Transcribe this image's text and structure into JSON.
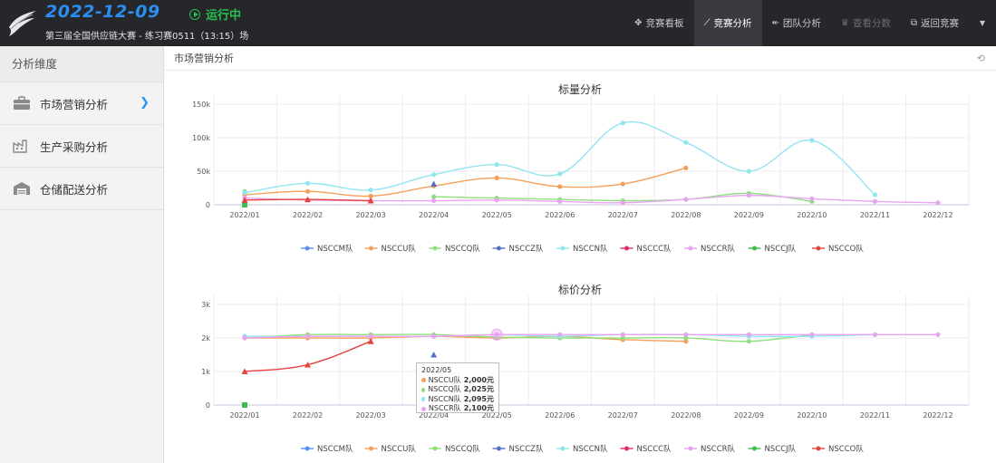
{
  "header": {
    "date": "2022-12-09",
    "status": "运行中",
    "subtitle": "第三届全国供应链大赛 - 练习赛0511（13:15）场"
  },
  "nav": [
    {
      "label": "竞赛看板",
      "icon": "dashboard-icon",
      "glyph": "✥",
      "state": "normal"
    },
    {
      "label": "竞赛分析",
      "icon": "chart-line-icon",
      "glyph": "⟋",
      "state": "active"
    },
    {
      "label": "团队分析",
      "icon": "arrow-left-icon",
      "glyph": "↞",
      "state": "normal"
    },
    {
      "label": "查看分数",
      "icon": "trophy-icon",
      "glyph": "♛",
      "state": "disabled"
    },
    {
      "label": "返回竞赛",
      "icon": "external-link-icon",
      "glyph": "⧉",
      "state": "normal"
    }
  ],
  "sidebar": {
    "title": "分析维度",
    "items": [
      {
        "label": "市场营销分析",
        "icon": "briefcase-icon",
        "active": true
      },
      {
        "label": "生产采购分析",
        "icon": "factory-icon",
        "active": false
      },
      {
        "label": "仓储配送分析",
        "icon": "warehouse-icon",
        "active": false
      }
    ]
  },
  "main": {
    "title": "市场营销分析",
    "refresh_icon": "refresh-icon"
  },
  "colors": {
    "NSCCM队": "#5b8ff9",
    "NSCCU队": "#f5a05a",
    "NSCCQ队": "#8ee07c",
    "NSCCZ队": "#5470c6",
    "NSCCN队": "#8fe6ee",
    "NSCCC队": "#e8246e",
    "NSCCR队": "#e9a3f2",
    "NSCCJ队": "#3cbf4c",
    "NSCCO队": "#e8423f"
  },
  "chart_data": [
    {
      "type": "line",
      "title": "标量分析",
      "categories": [
        "2022/01",
        "2022/02",
        "2022/03",
        "2022/04",
        "2022/05",
        "2022/06",
        "2022/07",
        "2022/08",
        "2022/09",
        "2022/10",
        "2022/11",
        "2022/12"
      ],
      "yticks": [
        "0",
        "50k",
        "100k",
        "150k"
      ],
      "ylim": [
        0,
        150000
      ],
      "legend": [
        "NSCCM队",
        "NSCCU队",
        "NSCCQ队",
        "NSCCZ队",
        "NSCCN队",
        "NSCCC队",
        "NSCCR队",
        "NSCCJ队",
        "NSCCO队"
      ],
      "series": [
        {
          "name": "NSCCU队",
          "marker": "circle",
          "values": [
            15000,
            20000,
            13000,
            28000,
            40000,
            27000,
            31000,
            55000,
            null,
            null,
            null,
            null
          ]
        },
        {
          "name": "NSCCQ队",
          "marker": "circle",
          "values": [
            20000,
            null,
            null,
            12000,
            10000,
            8000,
            6000,
            8000,
            17000,
            5000,
            null,
            null
          ]
        },
        {
          "name": "NSCCZ队",
          "marker": "triangle",
          "values": [
            null,
            null,
            null,
            31000,
            null,
            null,
            null,
            null,
            null,
            null,
            null,
            null
          ]
        },
        {
          "name": "NSCCN队",
          "marker": "circle",
          "values": [
            18000,
            32000,
            22000,
            45000,
            60000,
            46000,
            122000,
            93000,
            50000,
            96000,
            15000,
            null
          ]
        },
        {
          "name": "NSCCR队",
          "marker": "circle",
          "values": [
            10000,
            7000,
            6000,
            6000,
            7000,
            5000,
            3000,
            8000,
            14000,
            9000,
            5000,
            3000
          ]
        },
        {
          "name": "NSCCJ队",
          "marker": "square",
          "values": [
            0,
            null,
            null,
            null,
            null,
            null,
            null,
            null,
            null,
            null,
            null,
            null
          ]
        },
        {
          "name": "NSCCO队",
          "marker": "triangle",
          "values": [
            7000,
            8000,
            6000,
            null,
            null,
            null,
            null,
            null,
            null,
            null,
            null,
            null
          ]
        }
      ]
    },
    {
      "type": "line",
      "title": "标价分析",
      "categories": [
        "2022/01",
        "2022/02",
        "2022/03",
        "2022/04",
        "2022/05",
        "2022/06",
        "2022/07",
        "2022/08",
        "2022/09",
        "2022/10",
        "2022/11",
        "2022/12"
      ],
      "yticks": [
        "0",
        "1k",
        "2k",
        "3k"
      ],
      "ylim": [
        0,
        3000
      ],
      "legend": [
        "NSCCM队",
        "NSCCU队",
        "NSCCQ队",
        "NSCCZ队",
        "NSCCN队",
        "NSCCC队",
        "NSCCR队",
        "NSCCJ队",
        "NSCCO队"
      ],
      "series": [
        {
          "name": "NSCCU队",
          "marker": "circle",
          "values": [
            2000,
            2000,
            2000,
            2050,
            2000,
            2050,
            1950,
            1900,
            null,
            null,
            null,
            null
          ]
        },
        {
          "name": "NSCCQ队",
          "marker": "circle",
          "values": [
            2000,
            2100,
            2100,
            2100,
            2025,
            2000,
            2000,
            2000,
            1900,
            2100,
            null,
            null
          ]
        },
        {
          "name": "NSCCZ队",
          "marker": "triangle",
          "values": [
            null,
            null,
            null,
            1500,
            null,
            null,
            null,
            null,
            null,
            null,
            null,
            null
          ]
        },
        {
          "name": "NSCCN队",
          "marker": "circle",
          "values": [
            2050,
            2050,
            2050,
            2050,
            2095,
            2050,
            2100,
            2100,
            2050,
            2050,
            2100,
            null
          ]
        },
        {
          "name": "NSCCR队",
          "marker": "circle",
          "values": [
            2000,
            2050,
            2050,
            2050,
            2100,
            2100,
            2100,
            2100,
            2100,
            2100,
            2100,
            2100
          ]
        },
        {
          "name": "NSCCJ队",
          "marker": "square",
          "values": [
            0,
            null,
            null,
            null,
            null,
            null,
            null,
            null,
            null,
            null,
            null,
            null
          ]
        },
        {
          "name": "NSCCO队",
          "marker": "triangle",
          "values": [
            1000,
            1200,
            1900,
            null,
            null,
            null,
            null,
            null,
            null,
            null,
            null,
            null
          ]
        }
      ],
      "tooltip": {
        "category": "2022/05",
        "rows": [
          {
            "name": "NSCCU队",
            "value": "2,000元"
          },
          {
            "name": "NSCCQ队",
            "value": "2,025元"
          },
          {
            "name": "NSCCN队",
            "value": "2,095元"
          },
          {
            "name": "NSCCR队",
            "value": "2,100元"
          }
        ]
      }
    }
  ]
}
